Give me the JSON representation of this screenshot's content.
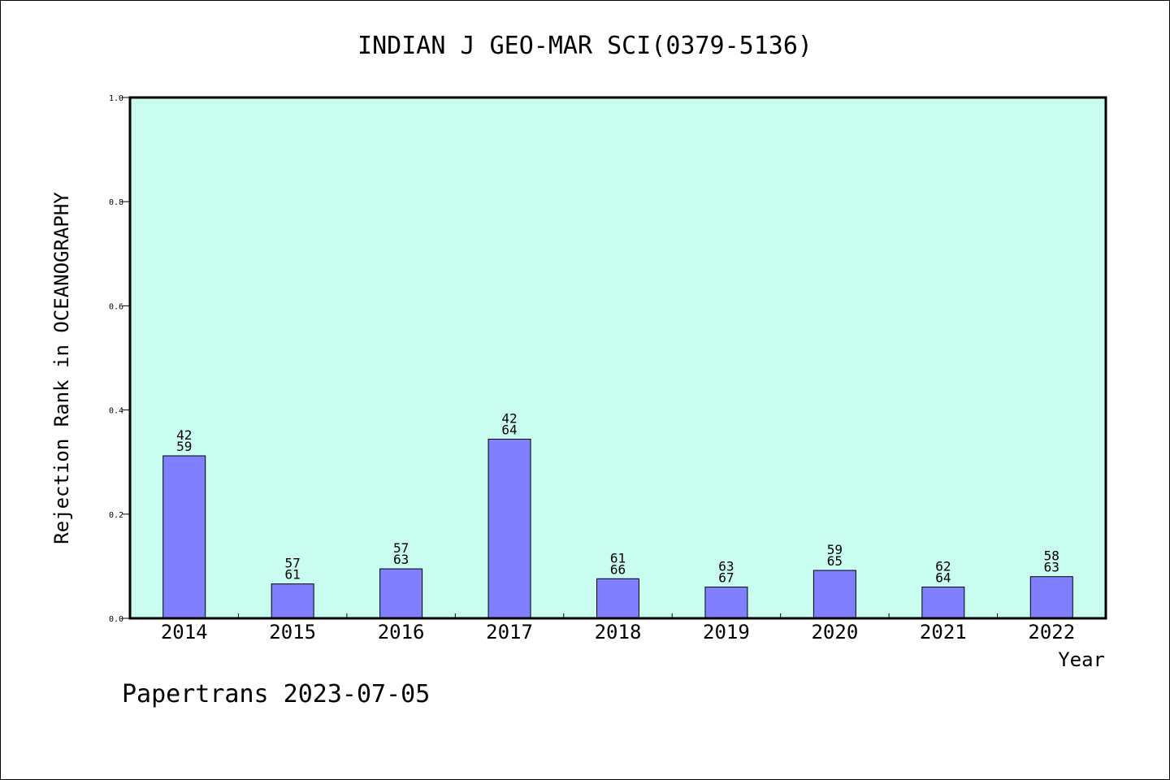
{
  "chart_data": {
    "type": "bar",
    "title": "INDIAN J GEO-MAR SCI(0379-5136)",
    "xlabel": "Year",
    "ylabel": "Rejection Rank in OCEANOGRAPHY",
    "ylim": [
      0,
      1.0
    ],
    "yticks": [
      "0.0",
      "0.2",
      "0.4",
      "0.6",
      "0.8",
      "1.0"
    ],
    "categories": [
      "2014",
      "2015",
      "2016",
      "2017",
      "2018",
      "2019",
      "2020",
      "2021",
      "2022"
    ],
    "values": [
      0.312,
      0.066,
      0.095,
      0.344,
      0.076,
      0.06,
      0.092,
      0.06,
      0.08
    ],
    "labels_top": [
      "42",
      "57",
      "57",
      "42",
      "61",
      "63",
      "59",
      "62",
      "58"
    ],
    "labels_bottom": [
      "59",
      "61",
      "63",
      "64",
      "66",
      "67",
      "65",
      "64",
      "63"
    ],
    "grid": false,
    "legend": "none"
  },
  "footer": "Papertrans 2023-07-05",
  "colors": {
    "plot_background": "#c8fdef",
    "bar_fill": "#8080ff",
    "bar_stroke": "#000000",
    "frame": "#000000"
  }
}
